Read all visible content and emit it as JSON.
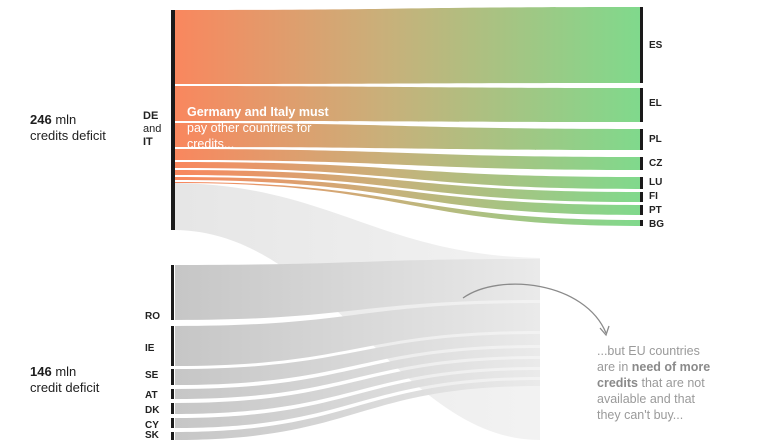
{
  "groups": {
    "deficit_top": {
      "value": "246",
      "unit": "mln",
      "line2": "credits deficit"
    },
    "deficit_bottom": {
      "value": "146",
      "unit": "mln",
      "line2": "credit deficit"
    }
  },
  "sources": {
    "de_it": {
      "line1": "DE",
      "line2": "and",
      "line3": "IT"
    }
  },
  "targets": [
    "ES",
    "EL",
    "PL",
    "CZ",
    "LU",
    "FI",
    "PT",
    "BG"
  ],
  "grey_sources": [
    "RO",
    "IE",
    "SE",
    "AT",
    "DK",
    "CY",
    "SK"
  ],
  "notes": {
    "germany_italy": {
      "bold": "Germany and Italy must",
      "rest1": "pay other countries for",
      "rest2": "credits..."
    },
    "eu_need": {
      "l1": "...but EU countries",
      "l2a": "are in ",
      "l2b": "need of more",
      "l3a": "credits",
      "l3b": " that are not",
      "l4": "available and that",
      "l5": "they can't buy..."
    }
  },
  "colors": {
    "source": "#f7895f",
    "target": "#86d98c",
    "grey_flow": "#c8c8c8",
    "bar": "#1a1a1a"
  }
}
